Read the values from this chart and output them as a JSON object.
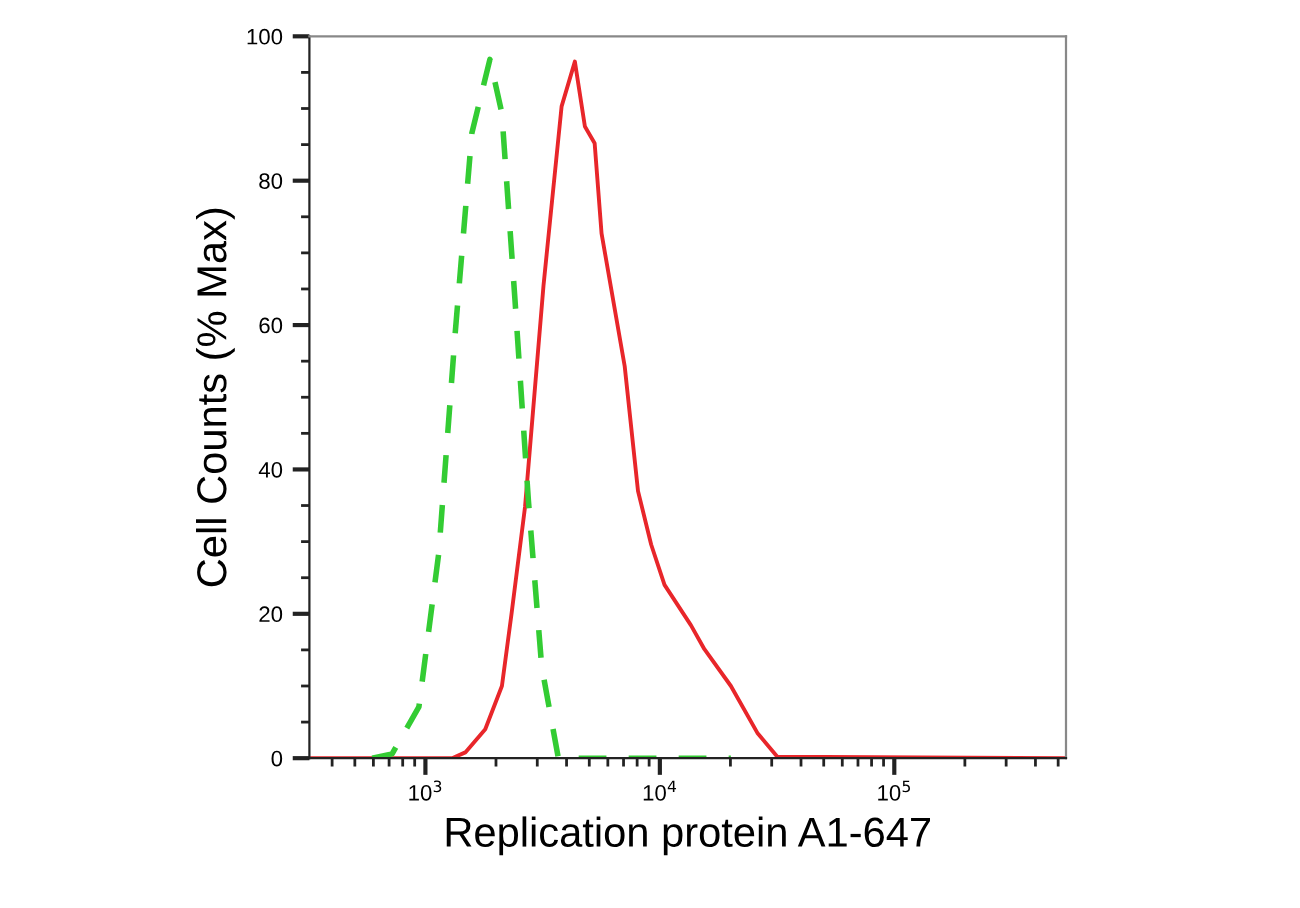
{
  "chart_data": {
    "type": "line",
    "xlabel": "Replication protein A1-647",
    "ylabel": "Cell Counts (% Max)",
    "log": "x",
    "xlim": [
      320,
      540000
    ],
    "ylim": [
      0,
      100
    ],
    "xticks": [
      {
        "value": 1000,
        "label": "10$^{3}$"
      },
      {
        "value": 10000,
        "label": "10$^{4}$"
      },
      {
        "value": 100000,
        "label": "10$^{5}$"
      }
    ],
    "yticks": [
      0,
      20,
      40,
      60,
      80,
      100
    ],
    "grid": false,
    "legend": false,
    "series": [
      {
        "color": "#e8262a",
        "line_style": "solid",
        "x": [
          320,
          1300,
          1480,
          1800,
          2120,
          2330,
          2660,
          3190,
          3810,
          4340,
          4790,
          5270,
          5640,
          7080,
          8070,
          9180,
          10470,
          13580,
          15490,
          20090,
          26060,
          31700,
          537000
        ],
        "values": [
          0,
          0,
          0.8,
          4,
          10,
          20,
          34.8,
          65.5,
          90.3,
          96.5,
          87.5,
          85.2,
          72.7,
          54.3,
          37,
          29.6,
          24,
          18.4,
          15.1,
          10,
          3.5,
          0.2,
          0
        ]
      },
      {
        "color": "#33cc33",
        "line_style": "dashed",
        "x": [
          593,
          721,
          938,
          1140,
          1340,
          1578,
          1884,
          2118,
          2410,
          2748,
          3133,
          3690,
          20090
        ],
        "values": [
          0,
          0.6,
          7.1,
          28.4,
          58.9,
          86.6,
          96.8,
          89.4,
          63.5,
          35.8,
          12.7,
          0,
          0
        ]
      }
    ]
  }
}
